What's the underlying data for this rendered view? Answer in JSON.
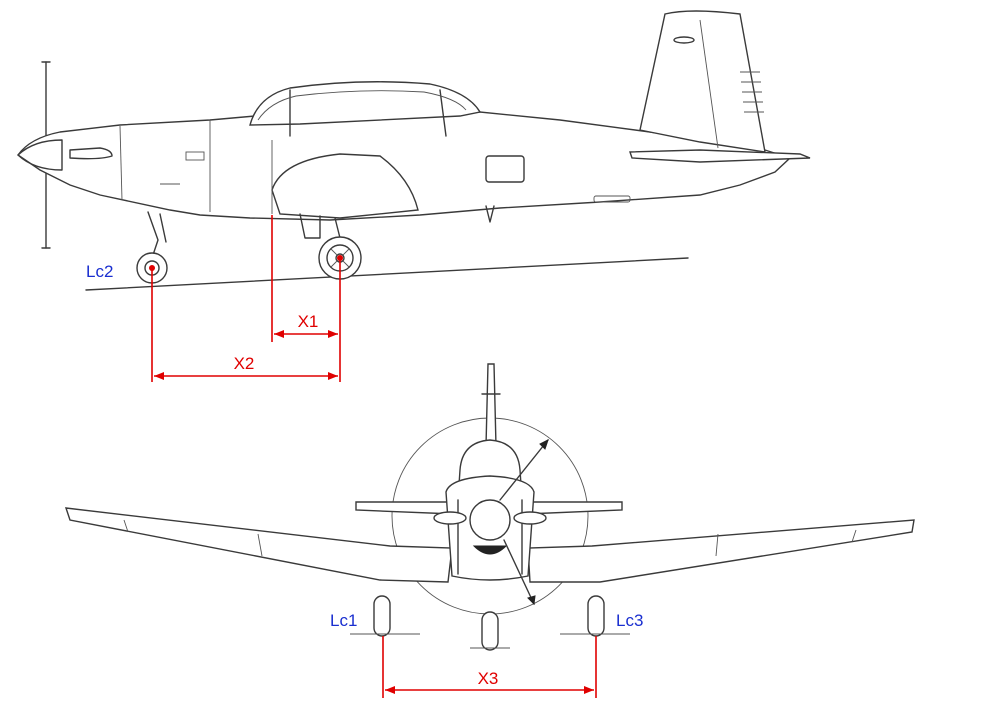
{
  "labels": {
    "lc1": "Lc1",
    "lc2": "Lc2",
    "lc3": "Lc3",
    "x1": "X1",
    "x2": "X2",
    "x3": "X3"
  },
  "colors": {
    "dimension": "#e00000",
    "label_blue": "#1a2fd0",
    "drawing": "#3a3a3a"
  }
}
